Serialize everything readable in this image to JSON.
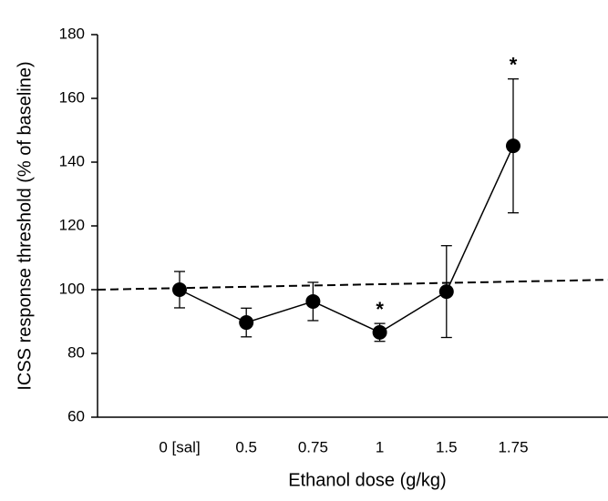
{
  "chart_data": {
    "type": "line",
    "x_label": "Ethanol dose (g/kg)",
    "y_label": "ICSS response threshold (% of baseline)",
    "categories": [
      "0 [sal]",
      "0.5",
      "0.75",
      "1",
      "1.5",
      "1.75"
    ],
    "series": [
      {
        "color": "#000000",
        "values": [
          100,
          89.7,
          96.3,
          86.6,
          99.4,
          145.1
        ],
        "errors": [
          5.7,
          4.5,
          6,
          2.8,
          14.4,
          21
        ]
      }
    ],
    "significance": [
      null,
      null,
      null,
      "*",
      null,
      "*"
    ],
    "baseline": {
      "values": [
        100,
        103.1
      ],
      "style": "dashed"
    },
    "ylim": [
      60,
      180
    ],
    "yticks": [
      60,
      80,
      100,
      120,
      140,
      160,
      180
    ]
  }
}
